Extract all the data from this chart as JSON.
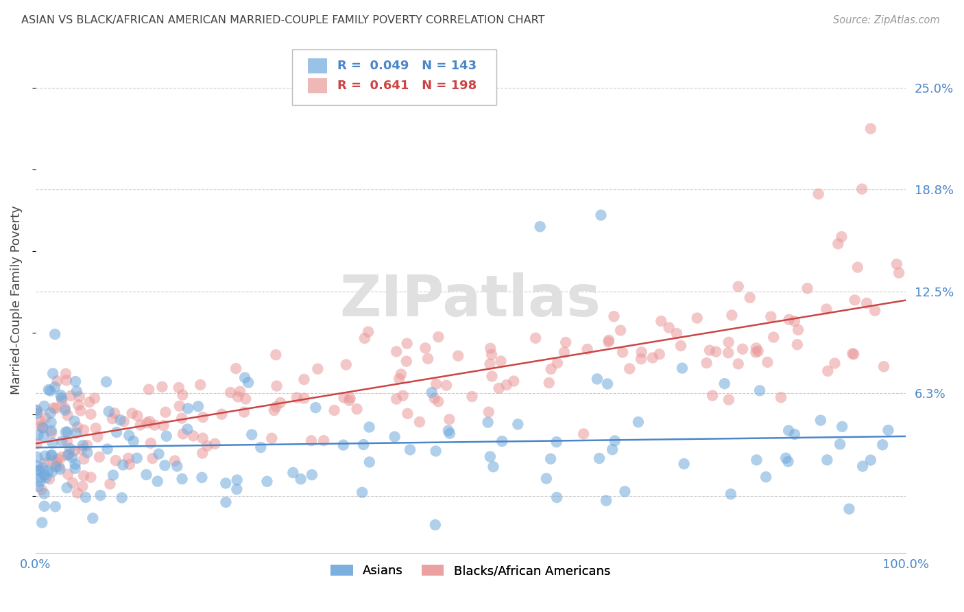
{
  "title": "ASIAN VS BLACK/AFRICAN AMERICAN MARRIED-COUPLE FAMILY POVERTY CORRELATION CHART",
  "source": "Source: ZipAtlas.com",
  "ylabel": "Married-Couple Family Poverty",
  "xlim": [
    0.0,
    100.0
  ],
  "ylim": [
    -3.5,
    27.5
  ],
  "ytick_vals": [
    0.0,
    6.3,
    12.5,
    18.8,
    25.0
  ],
  "ytick_labels": [
    "",
    "6.3%",
    "12.5%",
    "18.8%",
    "25.0%"
  ],
  "xtick_vals": [
    0.0,
    100.0
  ],
  "xtick_labels": [
    "0.0%",
    "100.0%"
  ],
  "grid_color": "#cccccc",
  "bg_color": "#ffffff",
  "asian_color": "#6fa8dc",
  "black_color": "#ea9999",
  "asian_line_color": "#4a86c8",
  "black_line_color": "#cc4444",
  "asian_R": 0.049,
  "asian_N": 143,
  "black_R": 0.641,
  "black_N": 198,
  "legend_asian": "Asians",
  "legend_black": "Blacks/African Americans",
  "title_color": "#434343",
  "ylabel_color": "#434343",
  "tick_color": "#4a86c8",
  "source_color": "#999999",
  "watermark": "ZIPatlas",
  "watermark_color": "#e0e0e0",
  "asian_seed": 42,
  "black_seed": 7
}
